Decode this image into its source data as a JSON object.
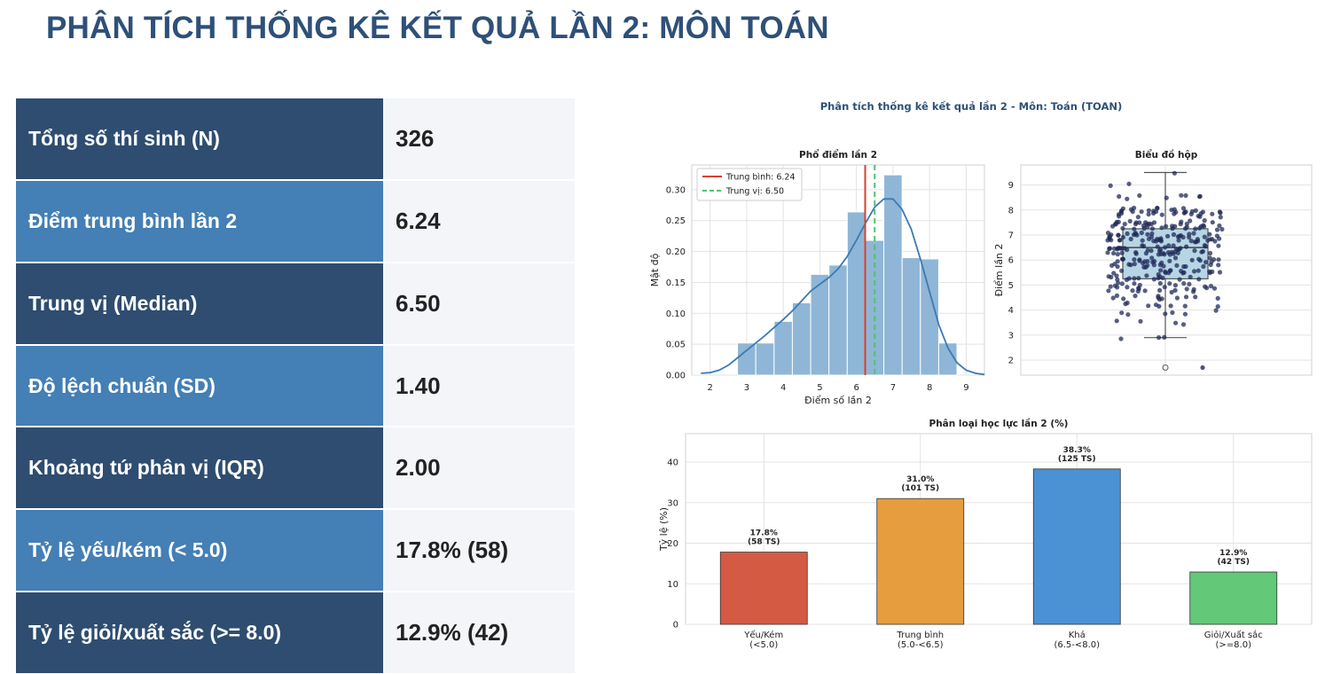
{
  "page_title": "PHÂN TÍCH THỐNG KÊ KẾT QUẢ LẦN 2: MÔN TOÁN",
  "stats": [
    {
      "label": "Tổng số thí sinh (N)",
      "value": "326"
    },
    {
      "label": "Điểm trung bình lần 2",
      "value": "6.24"
    },
    {
      "label": "Trung vị (Median)",
      "value": "6.50"
    },
    {
      "label": "Độ lệch chuẩn (SD)",
      "value": "1.40"
    },
    {
      "label": "Khoảng tứ phân vị (IQR)",
      "value": "2.00"
    },
    {
      "label": "Tỷ lệ yếu/kém (< 5.0)",
      "value": "17.8% (58)"
    },
    {
      "label": "Tỷ lệ giỏi/xuất sắc (>= 8.0)",
      "value": "12.9% (42)"
    }
  ],
  "colors": {
    "title": "#2e5078",
    "row_dark": "#2e4d70",
    "row_light": "#447fb5",
    "value_bg": "#f3f5f9",
    "hist_bar": "#8fb6d6",
    "kde_line": "#3c7ab5",
    "mean_line": "#d9412b",
    "median_line": "#4ec46e",
    "box_fill": "#a9cfe0",
    "strip_point": "#1f2a57"
  },
  "chart_data": [
    {
      "type": "bar",
      "subtype": "histogram",
      "suptitle": "Phân tích thống kê kết quả lần 2 - Môn: Toán (TOAN)",
      "title": "Phổ điểm lần 2",
      "xlabel": "Điểm số lần 2",
      "ylabel": "Mật độ",
      "xlim": [
        1.5,
        9.5
      ],
      "ylim": [
        0,
        0.34
      ],
      "xticks": [
        2,
        3,
        4,
        5,
        6,
        7,
        8,
        9
      ],
      "yticks": [
        0.0,
        0.05,
        0.1,
        0.15,
        0.2,
        0.25,
        0.3
      ],
      "ytick_labels": [
        "0.00",
        "0.05",
        "0.10",
        "0.15",
        "0.20",
        "0.25",
        "0.30"
      ],
      "bins": [
        {
          "x0": 2.75,
          "x1": 3.25,
          "density": 0.052
        },
        {
          "x0": 3.25,
          "x1": 3.75,
          "density": 0.052
        },
        {
          "x0": 3.75,
          "x1": 4.25,
          "density": 0.087
        },
        {
          "x0": 4.25,
          "x1": 4.75,
          "density": 0.117
        },
        {
          "x0": 4.75,
          "x1": 5.25,
          "density": 0.163
        },
        {
          "x0": 5.25,
          "x1": 5.75,
          "density": 0.178
        },
        {
          "x0": 5.75,
          "x1": 6.25,
          "density": 0.264
        },
        {
          "x0": 6.25,
          "x1": 6.75,
          "density": 0.218
        },
        {
          "x0": 6.75,
          "x1": 7.25,
          "density": 0.324
        },
        {
          "x0": 7.25,
          "x1": 7.75,
          "density": 0.19
        },
        {
          "x0": 7.75,
          "x1": 8.25,
          "density": 0.188
        },
        {
          "x0": 8.25,
          "x1": 8.75,
          "density": 0.052
        }
      ],
      "kde": {
        "x": [
          1.75,
          2.0,
          2.25,
          2.5,
          2.75,
          3.0,
          3.25,
          3.5,
          3.75,
          4.0,
          4.25,
          4.5,
          4.75,
          5.0,
          5.25,
          5.5,
          5.75,
          6.0,
          6.25,
          6.5,
          6.75,
          7.0,
          7.25,
          7.5,
          7.75,
          8.0,
          8.25,
          8.5,
          8.75,
          9.0,
          9.25,
          9.5
        ],
        "y": [
          0.003,
          0.004,
          0.008,
          0.016,
          0.028,
          0.04,
          0.052,
          0.064,
          0.077,
          0.09,
          0.104,
          0.12,
          0.136,
          0.147,
          0.158,
          0.172,
          0.192,
          0.218,
          0.246,
          0.272,
          0.285,
          0.285,
          0.268,
          0.236,
          0.188,
          0.135,
          0.082,
          0.044,
          0.02,
          0.008,
          0.003,
          0.001
        ]
      },
      "mean": 6.24,
      "median": 6.5,
      "legend": [
        "Trung bình: 6.24",
        "Trung vị: 6.50"
      ],
      "legend_position": "upper-left",
      "grid": true
    },
    {
      "type": "box",
      "title": "Biểu đồ hộp",
      "ylabel": "Điểm lần 2",
      "ylim": [
        1.4,
        9.8
      ],
      "yticks": [
        2,
        3,
        4,
        5,
        6,
        7,
        8,
        9
      ],
      "box": {
        "q1": 5.25,
        "median": 6.5,
        "q3": 7.25,
        "whisker_low": 2.9,
        "whisker_high": 9.5
      },
      "outliers": [
        1.7
      ],
      "strip_points": "326 jittered points (2.9 – 9.5)",
      "grid": true
    },
    {
      "type": "bar",
      "title": "Phân loại học lực lần 2 (%)",
      "ylabel": "Tỷ lệ (%)",
      "ylim": [
        0,
        47
      ],
      "yticks": [
        0,
        10,
        20,
        30,
        40
      ],
      "categories": [
        [
          "Yếu/Kém",
          "(<5.0)"
        ],
        [
          "Trung bình",
          "(5.0-<6.5)"
        ],
        [
          "Khá",
          "(6.5-<8.0)"
        ],
        [
          "Giỏi/Xuất sắc",
          "(>=8.0)"
        ]
      ],
      "values": [
        17.8,
        31.0,
        38.3,
        12.9
      ],
      "bar_labels": [
        [
          "17.8%",
          "(58 TS)"
        ],
        [
          "31.0%",
          "(101 TS)"
        ],
        [
          "38.3%",
          "(125 TS)"
        ],
        [
          "12.9%",
          "(42 TS)"
        ]
      ],
      "colors": [
        "#d55a44",
        "#e69d3e",
        "#4a92d4",
        "#63c878"
      ],
      "grid": true
    }
  ]
}
